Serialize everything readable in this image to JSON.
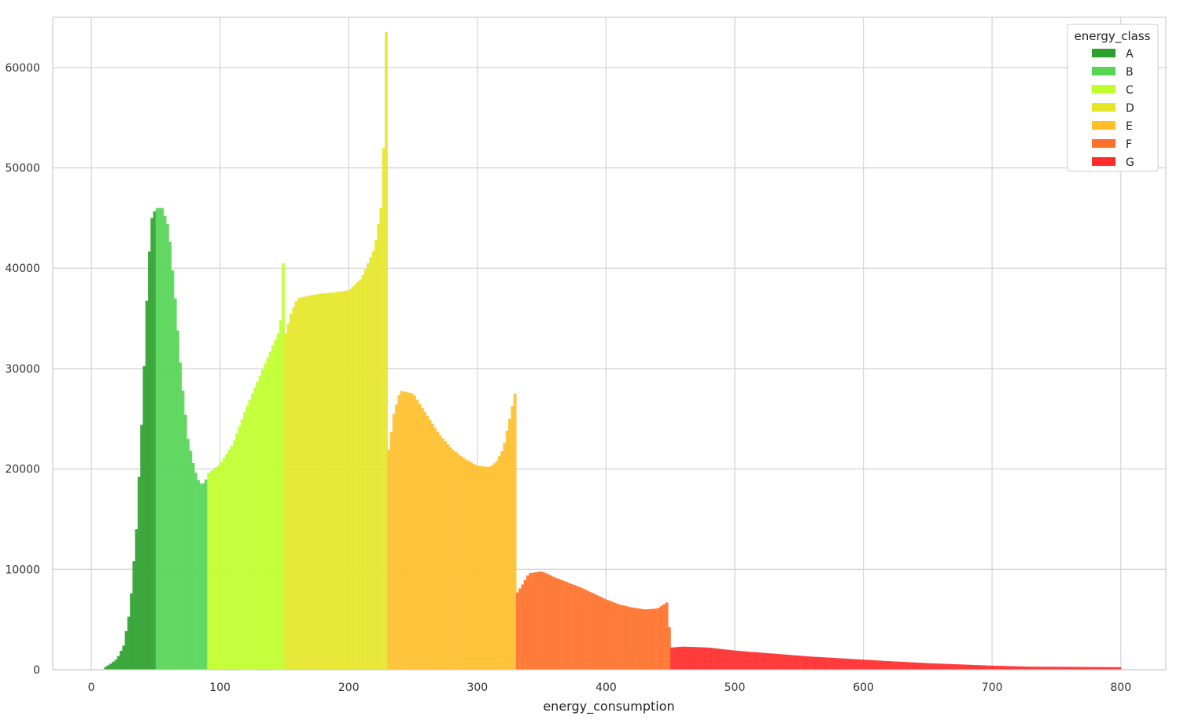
{
  "chart_data": {
    "type": "bar",
    "xlabel": "energy_consumption",
    "ylabel": "",
    "xlim": [
      -30,
      835
    ],
    "ylim": [
      0,
      65000
    ],
    "x_ticks": [
      0,
      100,
      200,
      300,
      400,
      500,
      600,
      700,
      800
    ],
    "y_ticks": [
      0,
      10000,
      20000,
      30000,
      40000,
      50000,
      60000
    ],
    "grid": true,
    "legend_title": "energy_class",
    "legend_position": "top-right",
    "series": [
      {
        "name": "A",
        "color": "#2ca02c",
        "points": [
          [
            10,
            200
          ],
          [
            15,
            600
          ],
          [
            20,
            1100
          ],
          [
            25,
            2400
          ],
          [
            30,
            6000
          ],
          [
            35,
            14000
          ],
          [
            40,
            27000
          ],
          [
            44,
            40000
          ],
          [
            47,
            45000
          ],
          [
            50,
            46000
          ]
        ]
      },
      {
        "name": "B",
        "color": "#55d455",
        "points": [
          [
            50,
            46000
          ],
          [
            55,
            46000
          ],
          [
            60,
            44000
          ],
          [
            65,
            37000
          ],
          [
            70,
            29000
          ],
          [
            75,
            23000
          ],
          [
            80,
            20000
          ],
          [
            84,
            18500
          ],
          [
            88,
            18600
          ],
          [
            90,
            19300
          ]
        ]
      },
      {
        "name": "C",
        "color": "#bfff2a",
        "points": [
          [
            90,
            19500
          ],
          [
            100,
            20500
          ],
          [
            110,
            22500
          ],
          [
            120,
            26000
          ],
          [
            130,
            29000
          ],
          [
            140,
            32000
          ],
          [
            145,
            33500
          ],
          [
            148,
            35500
          ],
          [
            149,
            40500
          ],
          [
            150,
            37500
          ]
        ]
      },
      {
        "name": "D",
        "color": "#e6e628",
        "points": [
          [
            150,
            33000
          ],
          [
            155,
            35500
          ],
          [
            160,
            37000
          ],
          [
            170,
            37300
          ],
          [
            180,
            37500
          ],
          [
            190,
            37600
          ],
          [
            200,
            37800
          ],
          [
            210,
            39000
          ],
          [
            220,
            42000
          ],
          [
            225,
            46000
          ],
          [
            227,
            52000
          ],
          [
            229,
            63500
          ],
          [
            230,
            39000
          ]
        ]
      },
      {
        "name": "E",
        "color": "#ffbf2a",
        "points": [
          [
            230,
            21000
          ],
          [
            235,
            25500
          ],
          [
            240,
            27800
          ],
          [
            250,
            27500
          ],
          [
            260,
            25500
          ],
          [
            270,
            23500
          ],
          [
            280,
            22000
          ],
          [
            290,
            21000
          ],
          [
            300,
            20300
          ],
          [
            310,
            20200
          ],
          [
            315,
            20800
          ],
          [
            320,
            22000
          ],
          [
            325,
            25000
          ],
          [
            329,
            27500
          ],
          [
            330,
            11500
          ]
        ]
      },
      {
        "name": "F",
        "color": "#ff7029",
        "points": [
          [
            330,
            7500
          ],
          [
            335,
            8500
          ],
          [
            340,
            9600
          ],
          [
            350,
            9800
          ],
          [
            360,
            9200
          ],
          [
            370,
            8700
          ],
          [
            380,
            8200
          ],
          [
            390,
            7600
          ],
          [
            400,
            7000
          ],
          [
            410,
            6500
          ],
          [
            420,
            6200
          ],
          [
            430,
            6000
          ],
          [
            440,
            6100
          ],
          [
            447,
            6700
          ],
          [
            450,
            3000
          ]
        ]
      },
      {
        "name": "G",
        "color": "#ff2a2a",
        "points": [
          [
            450,
            2200
          ],
          [
            460,
            2300
          ],
          [
            480,
            2200
          ],
          [
            500,
            1900
          ],
          [
            520,
            1700
          ],
          [
            540,
            1500
          ],
          [
            560,
            1300
          ],
          [
            580,
            1150
          ],
          [
            600,
            1000
          ],
          [
            620,
            850
          ],
          [
            650,
            650
          ],
          [
            680,
            500
          ],
          [
            700,
            400
          ],
          [
            730,
            300
          ],
          [
            760,
            280
          ],
          [
            800,
            250
          ]
        ]
      }
    ]
  }
}
